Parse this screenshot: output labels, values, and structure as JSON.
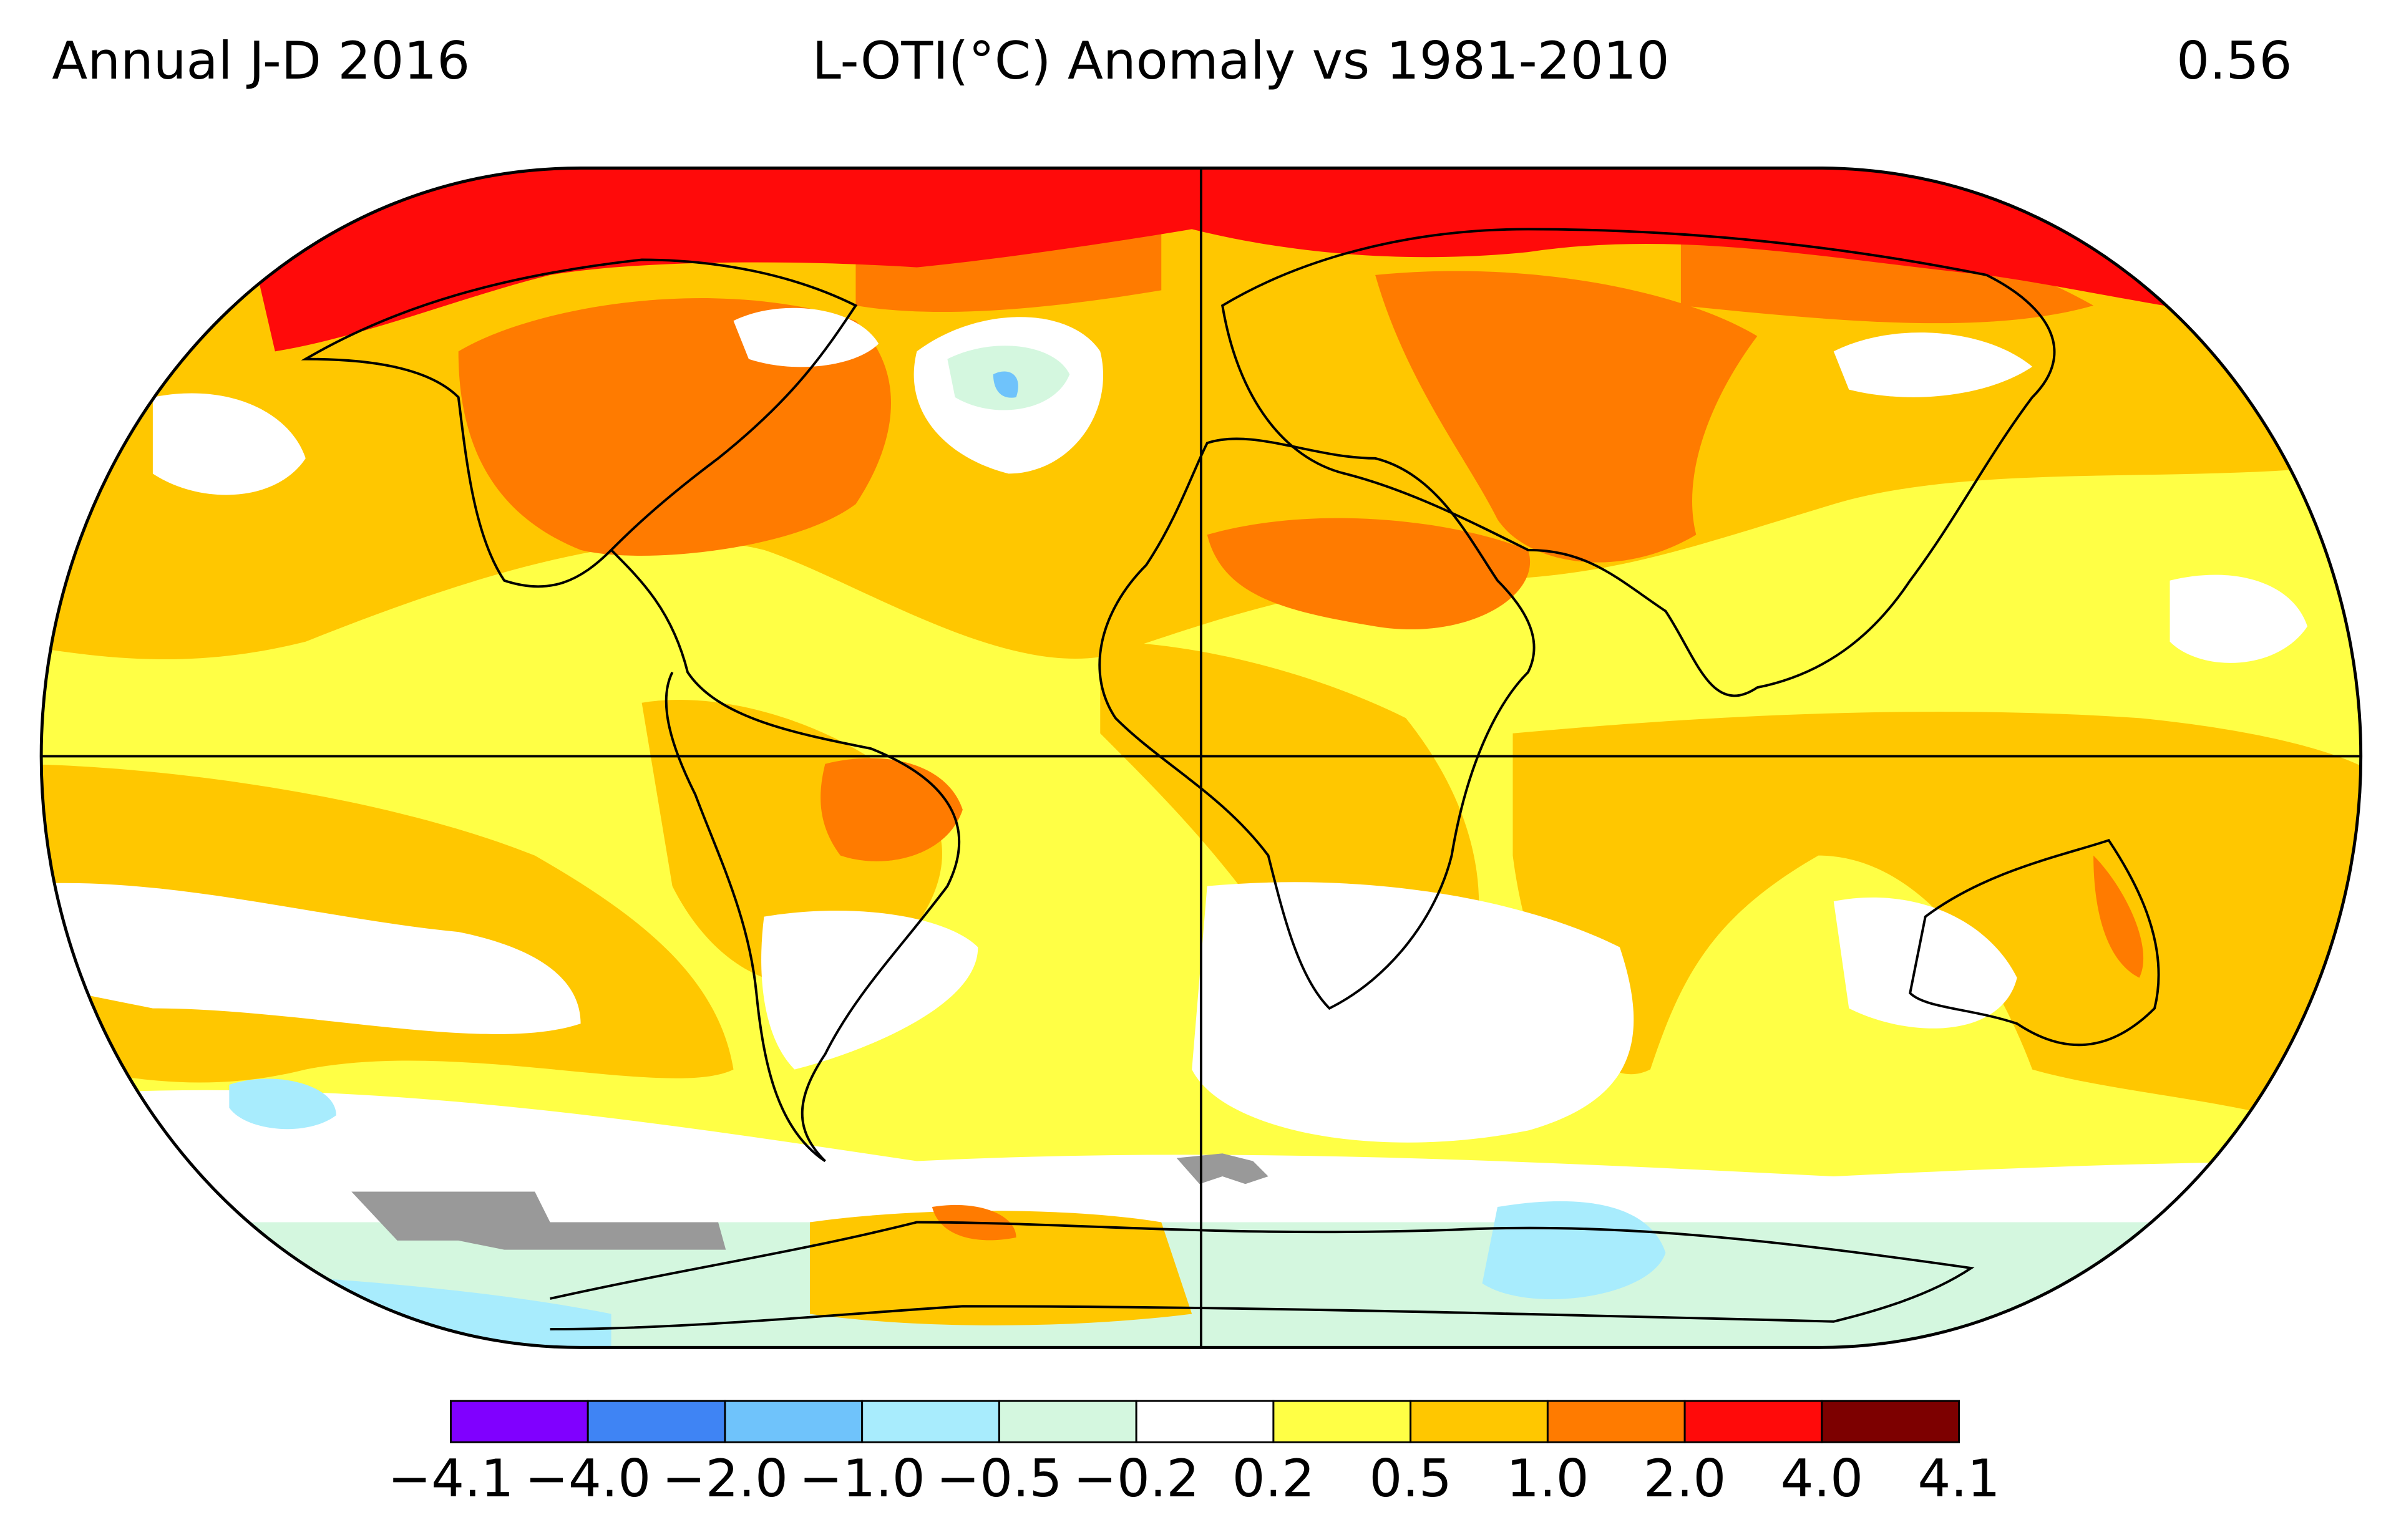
{
  "header": {
    "left": "Annual J-D 2016",
    "center": "L-OTI(°C) Anomaly vs 1981-2010",
    "right": "0.56"
  },
  "colorbar": {
    "labels": [
      "−4.1",
      "−4.0",
      "−2.0",
      "−1.0",
      "−0.5",
      "−0.2",
      "0.2",
      "0.5",
      "1.0",
      "2.0",
      "4.0",
      "4.1"
    ],
    "colors": [
      "#8000ff",
      "#3f84f4",
      "#6fc3fb",
      "#a8ecfd",
      "#d4f7df",
      "#ffffff",
      "#ffff45",
      "#ffc700",
      "#ff7b00",
      "#ff0a0a",
      "#7d0000"
    ]
  }
}
